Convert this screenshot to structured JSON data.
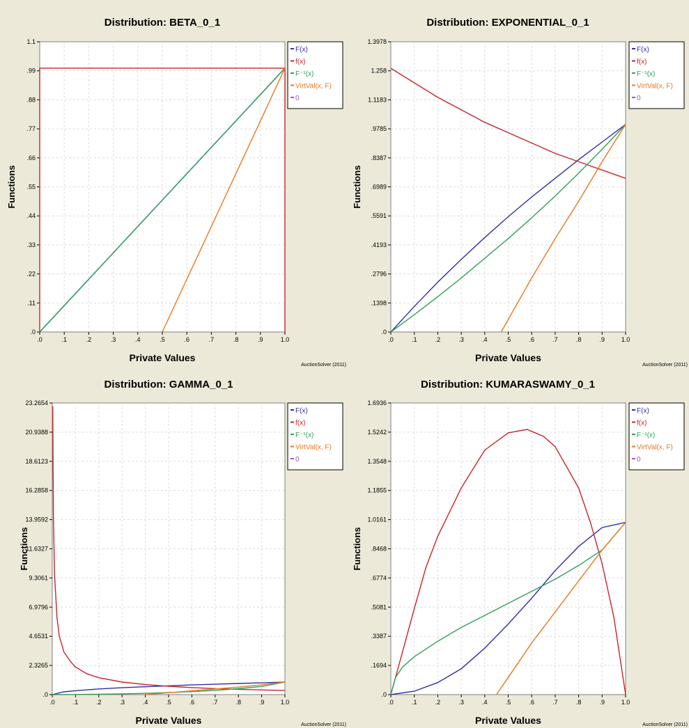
{
  "chart_data": [
    {
      "type": "line",
      "title": "Distribution: BETA_0_1",
      "xlabel": "Private Values",
      "ylabel": "Functions",
      "credit": "AuctionSolver (2011)",
      "xlim": [
        0,
        1
      ],
      "ylim": [
        0,
        1.1
      ],
      "xticks": [
        ".0",
        ".1",
        ".2",
        ".3",
        ".4",
        ".5",
        ".6",
        ".7",
        ".8",
        ".9",
        "1.0"
      ],
      "yticks": [
        ".0",
        ".11",
        ".22",
        ".33",
        ".44",
        ".55",
        ".66",
        ".77",
        ".88",
        ".99",
        "1.1"
      ],
      "grid": true,
      "legend_position": "right",
      "series": [
        {
          "name": "F(x)",
          "color": "#2f2fa8",
          "x": [
            0,
            1
          ],
          "y": [
            0,
            1
          ]
        },
        {
          "name": "f(x)",
          "color": "#c8242b",
          "x": [
            0,
            0,
            1,
            1
          ],
          "y": [
            0,
            1,
            1,
            0
          ]
        },
        {
          "name": "F⁻¹(x)",
          "color": "#2fa05a",
          "x": [
            0,
            1
          ],
          "y": [
            0,
            1
          ]
        },
        {
          "name": "VirtVal(x, F)",
          "color": "#e8781e",
          "x": [
            0.5,
            1
          ],
          "y": [
            0,
            1
          ]
        },
        {
          "name": "0",
          "color": "#9a5ac8",
          "x": [],
          "y": []
        }
      ]
    },
    {
      "type": "line",
      "title": "Distribution: EXPONENTIAL_0_1",
      "xlabel": "Private Values",
      "ylabel": "Functions",
      "credit": "AuctionSolver (2011)",
      "xlim": [
        0,
        1
      ],
      "ylim": [
        0,
        1.3978
      ],
      "xticks": [
        ".0",
        ".1",
        ".2",
        ".3",
        ".4",
        ".5",
        ".6",
        ".7",
        ".8",
        ".9",
        "1.0"
      ],
      "yticks": [
        ".0",
        ".1398",
        ".2796",
        ".4193",
        ".5591",
        ".6989",
        ".8387",
        ".9785",
        "1.1183",
        "1.258",
        "1.3978"
      ],
      "grid": true,
      "legend_position": "right",
      "series": [
        {
          "name": "F(x)",
          "color": "#2f2fa8",
          "x": [
            0,
            0.1,
            0.2,
            0.3,
            0.4,
            0.5,
            0.6,
            0.7,
            0.8,
            0.9,
            1.0
          ],
          "y": [
            0,
            0.123,
            0.24,
            0.35,
            0.455,
            0.555,
            0.65,
            0.74,
            0.83,
            0.915,
            1.0
          ]
        },
        {
          "name": "f(x)",
          "color": "#c8242b",
          "x": [
            0,
            0.1,
            0.2,
            0.3,
            0.4,
            0.5,
            0.6,
            0.7,
            0.8,
            0.9,
            1.0
          ],
          "y": [
            1.27,
            1.2,
            1.13,
            1.07,
            1.01,
            0.96,
            0.91,
            0.86,
            0.82,
            0.78,
            0.74
          ]
        },
        {
          "name": "F⁻¹(x)",
          "color": "#2fa05a",
          "x": [
            0,
            0.1,
            0.2,
            0.3,
            0.4,
            0.5,
            0.6,
            0.7,
            0.8,
            0.9,
            1.0
          ],
          "y": [
            0,
            0.083,
            0.17,
            0.26,
            0.355,
            0.45,
            0.55,
            0.655,
            0.765,
            0.88,
            1.0
          ]
        },
        {
          "name": "VirtVal(x, F)",
          "color": "#e8781e",
          "x": [
            0.47,
            0.6,
            0.7,
            0.8,
            0.9,
            1.0
          ],
          "y": [
            0,
            0.26,
            0.45,
            0.63,
            0.82,
            1.0
          ]
        },
        {
          "name": "0",
          "color": "#9a5ac8",
          "x": [],
          "y": []
        }
      ]
    },
    {
      "type": "line",
      "title": "Distribution: GAMMA_0_1",
      "xlabel": "Private Values",
      "ylabel": "Functions",
      "credit": "AuctionSolver (2011)",
      "xlim": [
        0,
        1
      ],
      "ylim": [
        0,
        23.2654
      ],
      "xticks": [
        ".0",
        ".1",
        ".2",
        ".3",
        ".4",
        ".5",
        ".6",
        ".7",
        ".8",
        ".9",
        "1.0"
      ],
      "yticks": [
        ".0",
        "2.3265",
        "4.6531",
        "6.9796",
        "9.3061",
        "11.6327",
        "13.9592",
        "16.2858",
        "18.6123",
        "20.9388",
        "23.2654"
      ],
      "grid": true,
      "legend_position": "right",
      "series": [
        {
          "name": "F(x)",
          "color": "#2f2fa8",
          "x": [
            0,
            0.05,
            0.1,
            0.2,
            0.3,
            0.4,
            0.5,
            0.6,
            0.7,
            0.8,
            0.9,
            1.0
          ],
          "y": [
            0,
            0.22,
            0.31,
            0.45,
            0.55,
            0.63,
            0.7,
            0.77,
            0.83,
            0.89,
            0.94,
            1.0
          ]
        },
        {
          "name": "f(x)",
          "color": "#c8242b",
          "x": [
            0.002,
            0.005,
            0.01,
            0.02,
            0.03,
            0.05,
            0.08,
            0.1,
            0.15,
            0.2,
            0.3,
            0.4,
            0.5,
            0.6,
            0.7,
            0.8,
            0.9,
            1.0
          ],
          "y": [
            23.0,
            14.0,
            9.6,
            6.2,
            4.7,
            3.4,
            2.6,
            2.2,
            1.65,
            1.35,
            1.0,
            0.8,
            0.66,
            0.56,
            0.48,
            0.42,
            0.37,
            0.33
          ]
        },
        {
          "name": "F⁻¹(x)",
          "color": "#2fa05a",
          "x": [
            0,
            0.1,
            0.2,
            0.3,
            0.4,
            0.5,
            0.6,
            0.7,
            0.8,
            0.9,
            1.0
          ],
          "y": [
            0,
            0.01,
            0.03,
            0.06,
            0.1,
            0.16,
            0.24,
            0.34,
            0.47,
            0.65,
            1.0
          ]
        },
        {
          "name": "VirtVal(x, F)",
          "color": "#e8781e",
          "x": [
            0.4,
            0.5,
            0.6,
            0.7,
            0.8,
            0.9,
            1.0
          ],
          "y": [
            0,
            0.15,
            0.3,
            0.45,
            0.6,
            0.78,
            1.0
          ]
        },
        {
          "name": "0",
          "color": "#9a5ac8",
          "x": [],
          "y": []
        }
      ]
    },
    {
      "type": "line",
      "title": "Distribution: KUMARASWAMY_0_1",
      "xlabel": "Private Values",
      "ylabel": "Functions",
      "credit": "AuctionSolver (2011)",
      "xlim": [
        0,
        1
      ],
      "ylim": [
        0,
        1.6936
      ],
      "xticks": [
        ".0",
        ".1",
        ".2",
        ".3",
        ".4",
        ".5",
        ".6",
        ".7",
        ".8",
        ".9",
        "1.0"
      ],
      "yticks": [
        ".0",
        ".1694",
        ".3387",
        ".5081",
        ".6774",
        ".8468",
        "1.0161",
        "1.1855",
        "1.3548",
        "1.5242",
        "1.6936"
      ],
      "grid": true,
      "legend_position": "right",
      "series": [
        {
          "name": "F(x)",
          "color": "#2f2fa8",
          "x": [
            0,
            0.1,
            0.2,
            0.3,
            0.4,
            0.5,
            0.6,
            0.7,
            0.8,
            0.9,
            1.0
          ],
          "y": [
            0,
            0.02,
            0.07,
            0.15,
            0.27,
            0.41,
            0.56,
            0.72,
            0.86,
            0.97,
            1.0
          ]
        },
        {
          "name": "f(x)",
          "color": "#c8242b",
          "x": [
            0,
            0.05,
            0.1,
            0.15,
            0.2,
            0.3,
            0.4,
            0.5,
            0.58,
            0.65,
            0.7,
            0.8,
            0.85,
            0.9,
            0.95,
            1.0
          ],
          "y": [
            0,
            0.25,
            0.5,
            0.74,
            0.92,
            1.2,
            1.42,
            1.52,
            1.54,
            1.5,
            1.44,
            1.2,
            1.0,
            0.76,
            0.45,
            0.0
          ]
        },
        {
          "name": "F⁻¹(x)",
          "color": "#2fa05a",
          "x": [
            0,
            0.02,
            0.05,
            0.1,
            0.2,
            0.3,
            0.4,
            0.5,
            0.6,
            0.7,
            0.8,
            0.9,
            1.0
          ],
          "y": [
            0,
            0.1,
            0.16,
            0.22,
            0.31,
            0.39,
            0.46,
            0.53,
            0.6,
            0.67,
            0.75,
            0.84,
            1.0
          ]
        },
        {
          "name": "VirtVal(x, F)",
          "color": "#e8781e",
          "x": [
            0.45,
            0.5,
            0.6,
            0.7,
            0.8,
            0.9,
            1.0
          ],
          "y": [
            0,
            0.1,
            0.3,
            0.48,
            0.66,
            0.84,
            1.0
          ]
        },
        {
          "name": "0",
          "color": "#9a5ac8",
          "x": [],
          "y": []
        }
      ]
    }
  ]
}
